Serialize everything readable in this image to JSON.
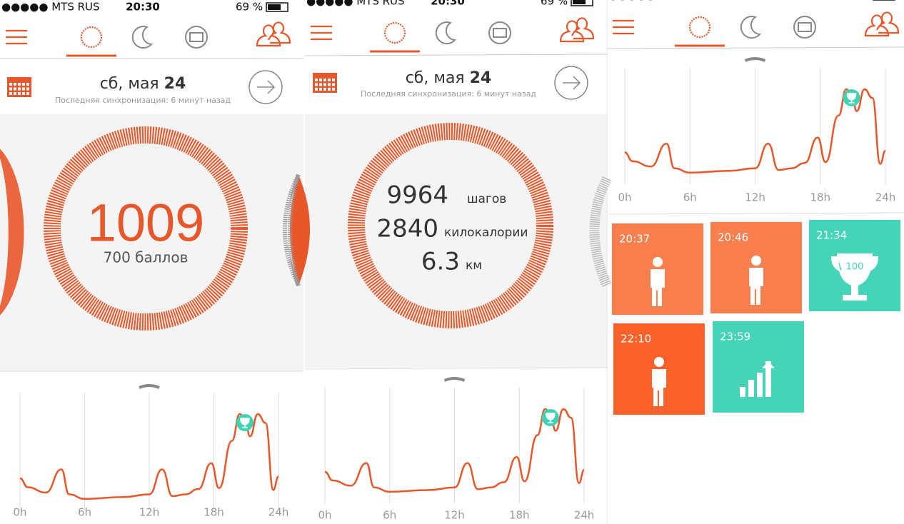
{
  "status_bar": {
    "carrier": "●●●●● MTS RUS",
    "time": "20:30",
    "battery": "69 %"
  },
  "panels": [
    {
      "weekday_month": "сб, мая",
      "day": "24",
      "sync": "Последняя синхронизация: 6 минут назад",
      "score": "1009",
      "score_label": "700 баллов"
    },
    {
      "weekday_month": "сб, мая",
      "day": "24",
      "sync": "Последняя синхронизация: 6 минут назад",
      "stats": [
        {
          "value": "9964",
          "unit": "шагов"
        },
        {
          "value": "2840",
          "unit": "килокалории"
        },
        {
          "value": "6.3",
          "unit": "км"
        }
      ]
    }
  ],
  "chart_axis": [
    "0h",
    "6h",
    "12h",
    "18h",
    "24h"
  ],
  "tiles": [
    {
      "time": "20:37"
    },
    {
      "time": "20:46"
    },
    {
      "time": "21:34",
      "badge": "100"
    },
    {
      "time": "22:10"
    },
    {
      "time": "23:59"
    }
  ]
}
